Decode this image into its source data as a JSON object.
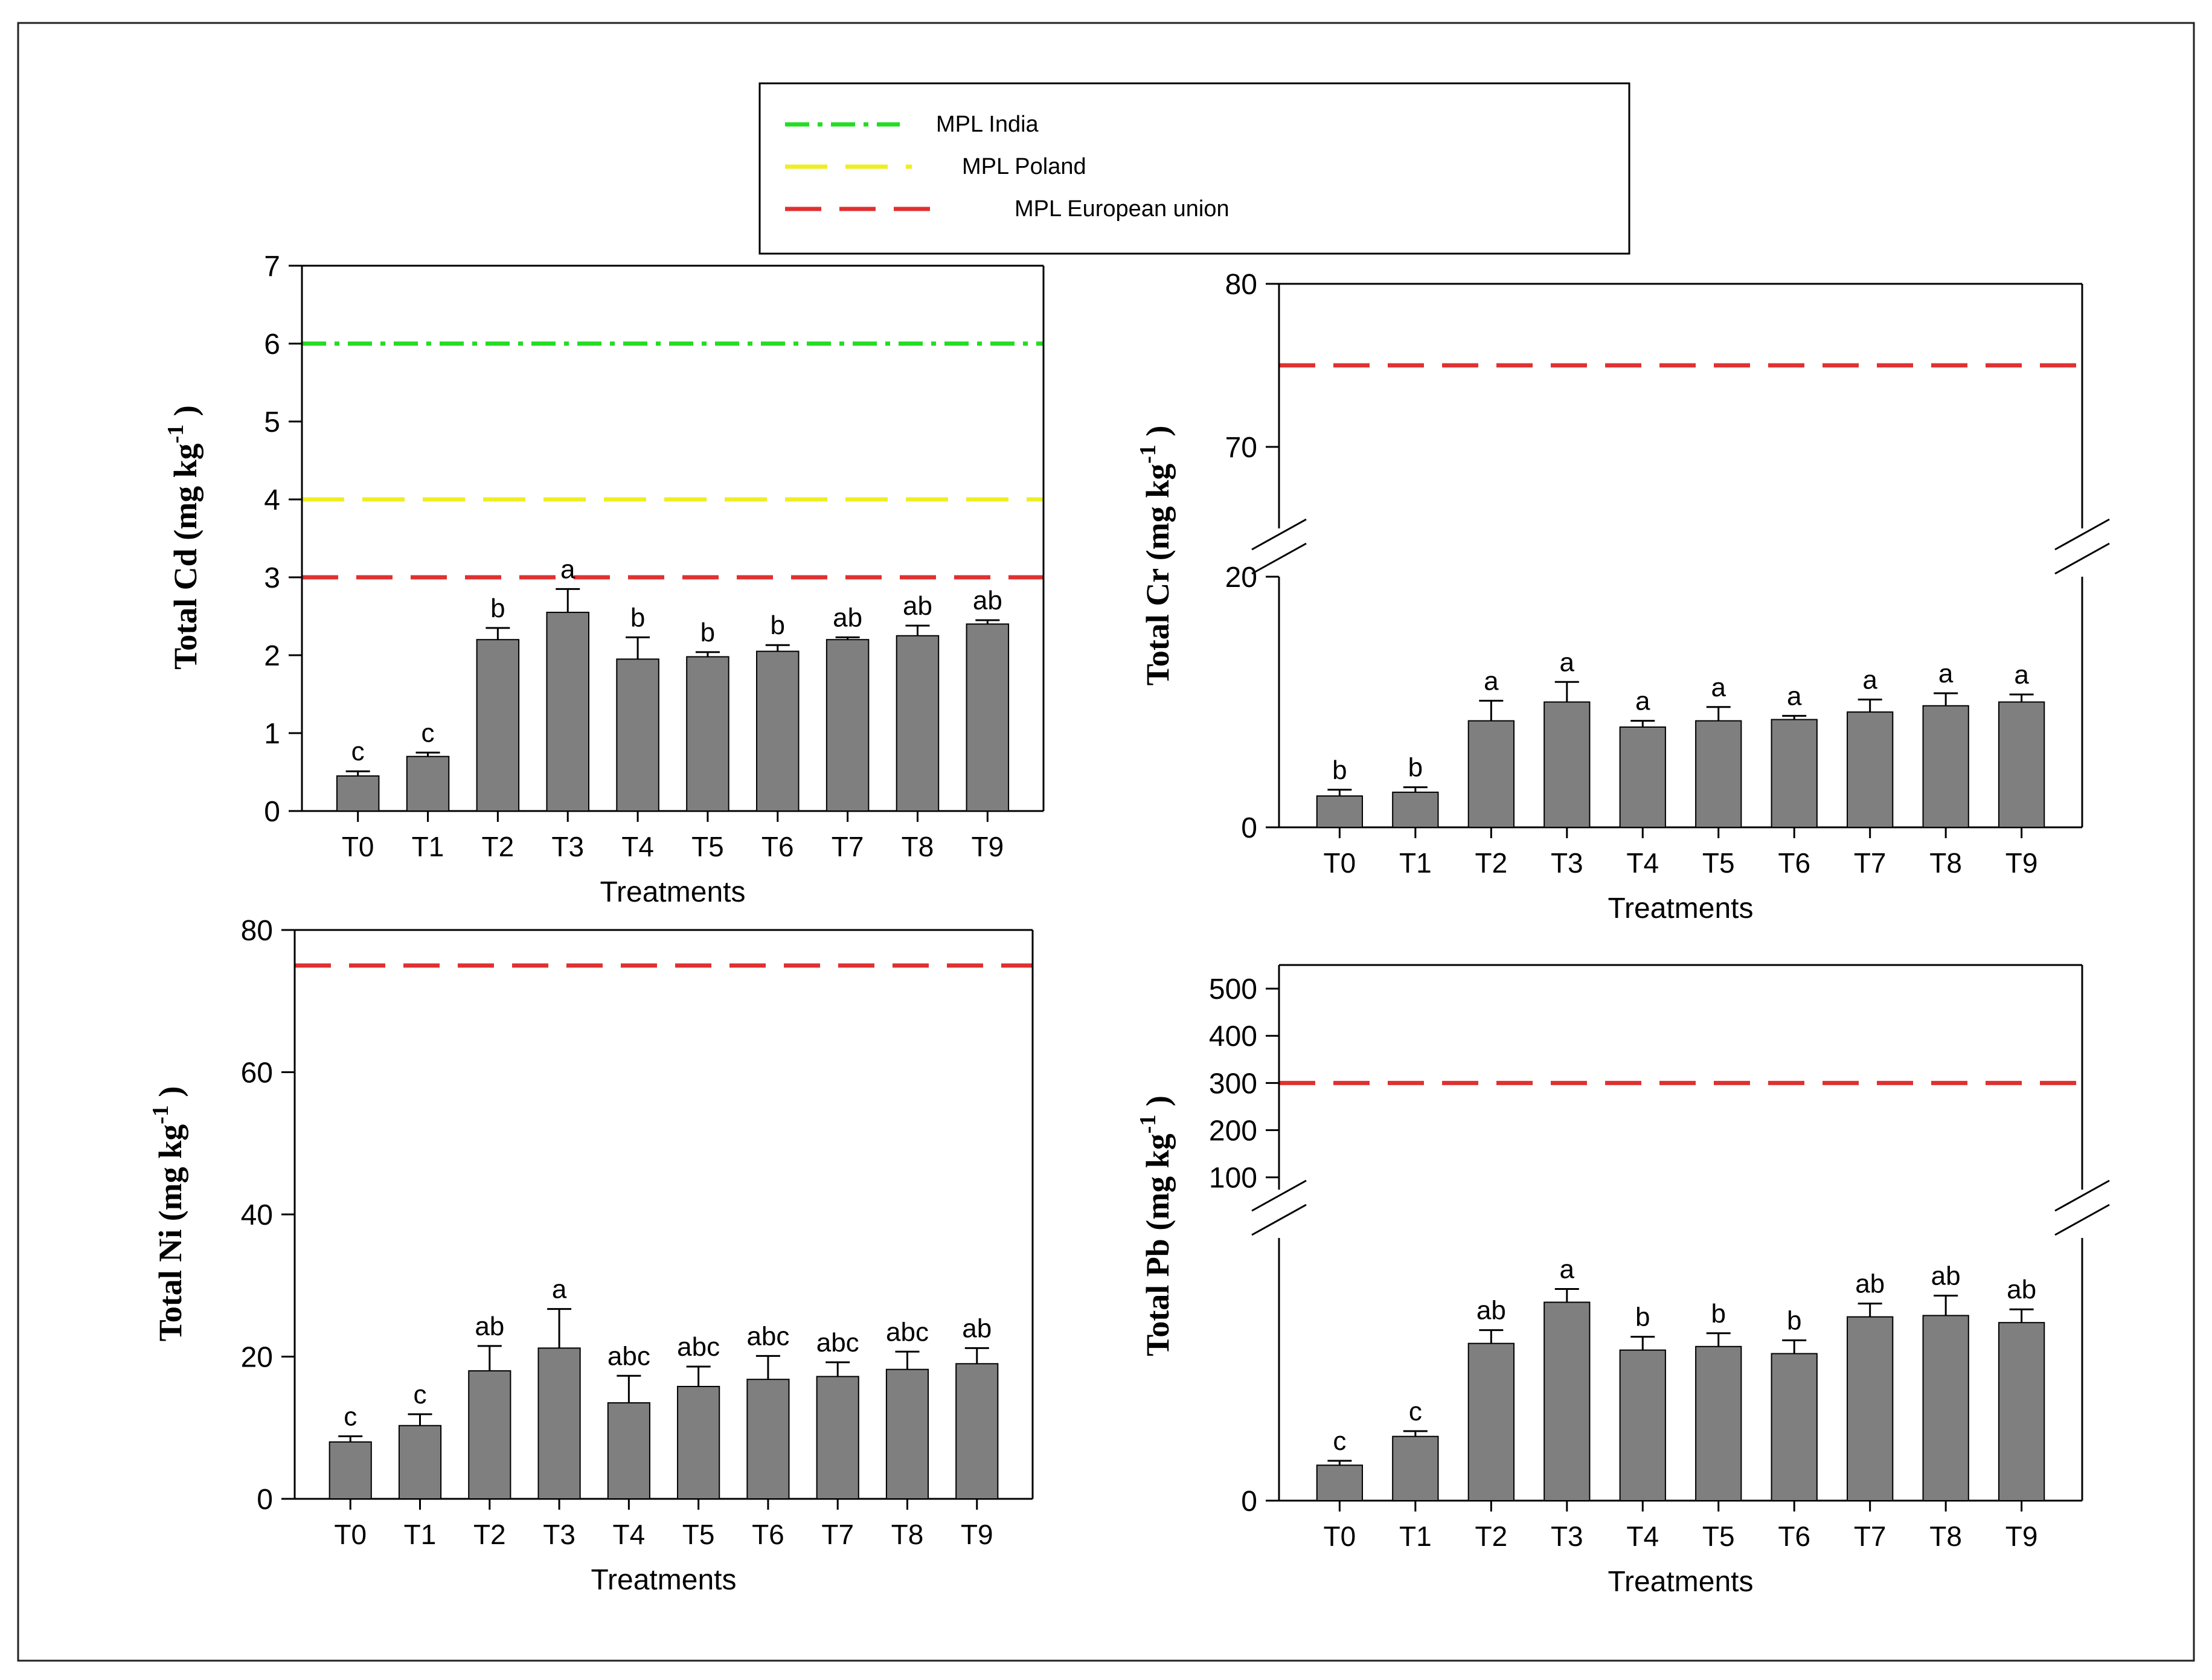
{
  "legend": {
    "items": [
      {
        "label": "MPL India",
        "color": "#22dd22",
        "style": "dashdot"
      },
      {
        "label": "MPL Poland",
        "color": "#eeee22",
        "style": "longdash"
      },
      {
        "label": "MPL European union",
        "color": "#e03030",
        "style": "dash"
      }
    ]
  },
  "colors": {
    "bar": "#7f7f7f",
    "axis": "#000000"
  },
  "chart_data": [
    {
      "id": "cd",
      "type": "bar",
      "ylabel_main": "Total Cd (mg kg",
      "ylabel_sup": "-1",
      "ylabel_tail": ")",
      "xlabel": "Treatments",
      "categories": [
        "T0",
        "T1",
        "T2",
        "T3",
        "T4",
        "T5",
        "T6",
        "T7",
        "T8",
        "T9"
      ],
      "values": [
        0.45,
        0.7,
        2.2,
        2.55,
        1.95,
        1.98,
        2.05,
        2.2,
        2.25,
        2.4
      ],
      "errors": [
        0.06,
        0.05,
        0.15,
        0.3,
        0.28,
        0.06,
        0.08,
        0.03,
        0.13,
        0.05
      ],
      "letters": [
        "c",
        "c",
        "b",
        "a",
        "b",
        "b",
        "b",
        "ab",
        "ab",
        "ab"
      ],
      "ylim": [
        0,
        7
      ],
      "yticks": [
        0,
        1,
        2,
        3,
        4,
        5,
        6,
        7
      ],
      "ytick_labels": [
        "0",
        "1",
        "2",
        "3",
        "4",
        "5",
        "6",
        "7"
      ],
      "reference_lines": [
        {
          "name": "MPL India",
          "value": 6,
          "color": "#22dd22",
          "style": "dashdot"
        },
        {
          "name": "MPL Poland",
          "value": 4,
          "color": "#eeee22",
          "style": "longdash"
        },
        {
          "name": "MPL European union",
          "value": 3,
          "color": "#e03030",
          "style": "dash"
        }
      ]
    },
    {
      "id": "cr",
      "type": "bar",
      "ylabel_main": "Total Cr (mg kg",
      "ylabel_sup": "-1",
      "ylabel_tail": ")",
      "xlabel": "Treatments",
      "categories": [
        "T0",
        "T1",
        "T2",
        "T3",
        "T4",
        "T5",
        "T6",
        "T7",
        "T8",
        "T9"
      ],
      "values": [
        2.5,
        2.8,
        8.5,
        10.0,
        8.0,
        8.5,
        8.6,
        9.2,
        9.7,
        10.0
      ],
      "errors": [
        0.5,
        0.4,
        1.6,
        1.6,
        0.5,
        1.1,
        0.3,
        1.0,
        1.0,
        0.6
      ],
      "letters": [
        "b",
        "b",
        "a",
        "a",
        "a",
        "a",
        "a",
        "a",
        "a",
        "a"
      ],
      "broken_axis": {
        "lower": [
          0,
          20
        ],
        "upper": [
          65,
          80
        ]
      },
      "yticks": [
        0,
        20,
        70,
        80
      ],
      "ytick_labels": [
        "0",
        "20",
        "70",
        "80"
      ],
      "reference_lines": [
        {
          "name": "MPL European union",
          "value": 75,
          "color": "#e03030",
          "style": "dash"
        }
      ]
    },
    {
      "id": "ni",
      "type": "bar",
      "ylabel_main": "Total Ni (mg kg",
      "ylabel_sup": "-1",
      "ylabel_tail": ")",
      "xlabel": "Treatments",
      "categories": [
        "T0",
        "T1",
        "T2",
        "T3",
        "T4",
        "T5",
        "T6",
        "T7",
        "T8",
        "T9"
      ],
      "values": [
        8.0,
        10.3,
        18.0,
        21.2,
        13.5,
        15.8,
        16.8,
        17.2,
        18.2,
        19.0
      ],
      "errors": [
        0.8,
        1.6,
        3.5,
        5.5,
        3.8,
        2.8,
        3.3,
        2.0,
        2.5,
        2.2
      ],
      "letters": [
        "c",
        "c",
        "ab",
        "a",
        "abc",
        "abc",
        "abc",
        "abc",
        "abc",
        "ab"
      ],
      "ylim": [
        0,
        80
      ],
      "yticks": [
        0,
        20,
        40,
        60,
        80
      ],
      "ytick_labels": [
        "0",
        "20",
        "40",
        "60",
        "80"
      ],
      "reference_lines": [
        {
          "name": "MPL European union",
          "value": 75,
          "color": "#e03030",
          "style": "dash"
        }
      ]
    },
    {
      "id": "pb",
      "type": "bar",
      "ylabel_main": "Total Pb (mg kg",
      "ylabel_sup": "-1",
      "ylabel_tail": ")",
      "xlabel": "Treatments",
      "categories": [
        "T0",
        "T1",
        "T2",
        "T3",
        "T4",
        "T5",
        "T6",
        "T7",
        "T8",
        "T9"
      ],
      "values": [
        8.0,
        14.5,
        35.5,
        44.8,
        34.0,
        34.8,
        33.2,
        41.5,
        41.8,
        40.2
      ],
      "errors": [
        1.0,
        1.2,
        3.0,
        3.0,
        3.0,
        3.0,
        3.0,
        3.0,
        4.5,
        3.0
      ],
      "letters": [
        "c",
        "c",
        "ab",
        "a",
        "b",
        "b",
        "b",
        "ab",
        "ab",
        "ab"
      ],
      "broken_axis": {
        "lower": [
          0,
          60
        ],
        "upper": [
          70,
          550
        ]
      },
      "yticks": [
        0,
        100,
        200,
        300,
        400,
        500
      ],
      "ytick_labels": [
        "0",
        "100",
        "200",
        "300",
        "400",
        "500"
      ],
      "reference_lines": [
        {
          "name": "MPL European union",
          "value": 300,
          "color": "#e03030",
          "style": "dash"
        }
      ]
    }
  ]
}
